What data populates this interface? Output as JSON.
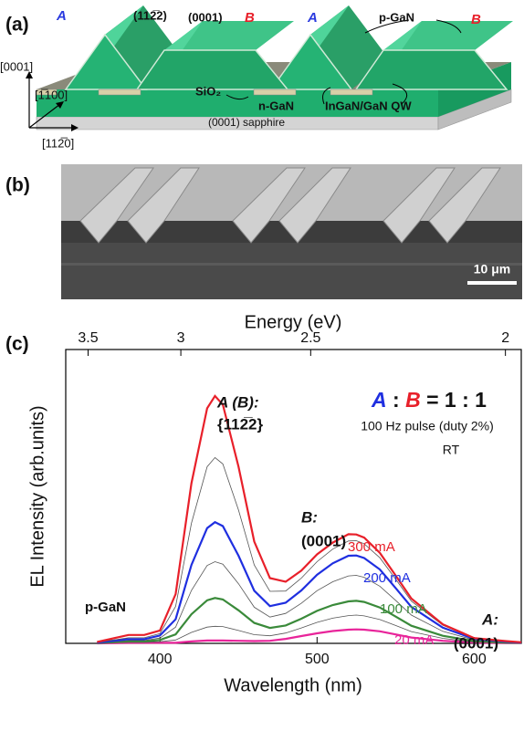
{
  "figure_a": {
    "panel": "(a)",
    "labels": [
      "A",
      "(112̅2)",
      "(0001)",
      "B",
      "A",
      "p-GaN",
      "B",
      "[0001]",
      "[1̅100]",
      "SiO₂",
      "n-GaN",
      "InGaN/GaN QW",
      "(0001) sapphire",
      "[112̅0]"
    ]
  },
  "figure_b": {
    "panel": "(b)",
    "scale_bar": "10 μm"
  },
  "chart_data": {
    "type": "line",
    "panel": "(c)",
    "xlabel": "Wavelength (nm)",
    "ylabel": "EL Intensity (arb.units)",
    "x2label": "Energy (eV)",
    "xlim": [
      340,
      630
    ],
    "ylim": [
      0,
      105
    ],
    "xticks": [
      400,
      500,
      600
    ],
    "x2ticks": [
      3.5,
      3,
      2.5,
      2
    ],
    "x": [
      360,
      380,
      390,
      400,
      410,
      420,
      430,
      435,
      440,
      450,
      460,
      470,
      480,
      490,
      500,
      510,
      520,
      525,
      530,
      540,
      550,
      560,
      580,
      600,
      620,
      630
    ],
    "series": [
      {
        "name": "300 mA",
        "color": "#e8202a",
        "values": [
          0.5,
          3,
          3,
          4.6,
          17.6,
          57.2,
          84,
          88.4,
          85.3,
          63.1,
          36.4,
          23.3,
          22,
          26,
          31.8,
          36,
          39,
          38.9,
          37.8,
          32.3,
          24.3,
          16,
          6.8,
          1.9,
          0.8,
          0.4
        ]
      },
      {
        "color": "#555555",
        "values": [
          0.4,
          2,
          2,
          3.5,
          13.2,
          42.9,
          63.1,
          66.4,
          64.1,
          47.6,
          28,
          18.6,
          18.7,
          23.3,
          29.2,
          33.7,
          36.6,
          36.7,
          35.6,
          30.6,
          23,
          15.1,
          6.5,
          1.8,
          0.7,
          0.4
        ]
      },
      {
        "name": "200 mA",
        "color": "#1f2fe0",
        "values": [
          0.3,
          1.5,
          1.5,
          2.8,
          8.6,
          28,
          41.2,
          43.3,
          41.9,
          31.3,
          18.8,
          13.3,
          14.5,
          18.9,
          24.5,
          28.6,
          31.3,
          31.4,
          30.5,
          26.4,
          19.8,
          13,
          5.6,
          1.6,
          0.6,
          0.3
        ]
      },
      {
        "color": "#555555",
        "values": [
          0.2,
          1,
          1,
          1.9,
          5.8,
          18.9,
          27.8,
          29.2,
          28.3,
          21.3,
          12.9,
          9.4,
          10.7,
          14.3,
          18.8,
          22,
          24.1,
          24.3,
          23.6,
          20.4,
          15.4,
          10.1,
          4.3,
          1.2,
          0.5,
          0.2
        ]
      },
      {
        "name": "100 mA",
        "color": "#3a8a3a",
        "values": [
          0.1,
          0.7,
          0.7,
          1.2,
          3.2,
          10.4,
          15.4,
          16.2,
          15.7,
          11.8,
          7.3,
          5.5,
          6.4,
          8.8,
          11.6,
          13.7,
          15,
          15.2,
          14.8,
          12.8,
          9.6,
          6.3,
          2.7,
          0.8,
          0.3,
          0.2
        ]
      },
      {
        "color": "#555555",
        "values": [
          0.1,
          0.4,
          0.4,
          0.6,
          1.2,
          3.9,
          5.8,
          6.1,
          6,
          4.6,
          3.1,
          2.7,
          3.7,
          5.5,
          7.5,
          9,
          9.9,
          10.1,
          9.8,
          8.5,
          6.4,
          4.2,
          1.8,
          0.5,
          0.2,
          0.1
        ]
      },
      {
        "name": "20 mA",
        "color": "#e8249a",
        "values": [
          0,
          0.2,
          0.2,
          0.2,
          0.2,
          0.7,
          1,
          1,
          1,
          0.9,
          0.8,
          0.9,
          1.6,
          2.6,
          3.6,
          4.4,
          4.9,
          5,
          4.9,
          4.3,
          3.2,
          2.1,
          0.9,
          0.3,
          0.1,
          0.1
        ]
      }
    ],
    "ratio": [
      "A",
      ":",
      "B",
      "= 1 : 1"
    ],
    "annotations": [
      "A (B):",
      "{112̅2}",
      "B:",
      "(0001)",
      "100 Hz pulse (duty 2%)",
      "RT",
      "p-GaN",
      "A:",
      "(0001)"
    ]
  }
}
